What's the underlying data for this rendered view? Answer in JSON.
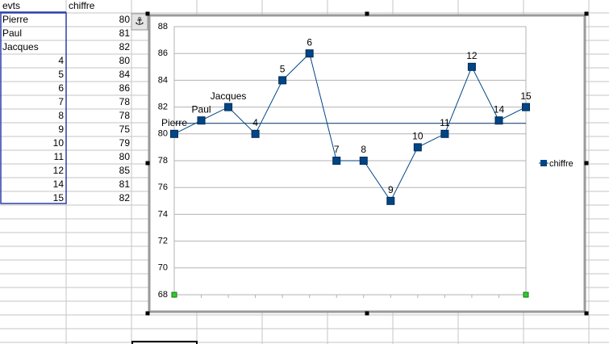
{
  "table": {
    "headers": [
      "evts",
      "chiffre"
    ],
    "rows": [
      [
        "Pierre",
        80
      ],
      [
        "Paul",
        81
      ],
      [
        "Jacques",
        82
      ],
      [
        4,
        80
      ],
      [
        5,
        84
      ],
      [
        6,
        86
      ],
      [
        7,
        78
      ],
      [
        8,
        78
      ],
      [
        9,
        75
      ],
      [
        10,
        79
      ],
      [
        11,
        80
      ],
      [
        12,
        85
      ],
      [
        14,
        81
      ],
      [
        15,
        82
      ]
    ]
  },
  "chart_data": {
    "type": "line",
    "categories": [
      "Pierre",
      "Paul",
      "Jacques",
      "4",
      "5",
      "6",
      "7",
      "8",
      "9",
      "10",
      "11",
      "12",
      "14",
      "15"
    ],
    "series": [
      {
        "name": "chiffre",
        "color": "#004586",
        "values": [
          80,
          81,
          82,
          80,
          84,
          86,
          78,
          78,
          75,
          79,
          80,
          85,
          81,
          82
        ]
      }
    ],
    "ylim": [
      68,
      88
    ],
    "yticks": [
      68,
      70,
      72,
      74,
      76,
      78,
      80,
      82,
      84,
      86,
      88
    ],
    "grid": true,
    "legend": "right",
    "mean_line": 80.79
  }
}
